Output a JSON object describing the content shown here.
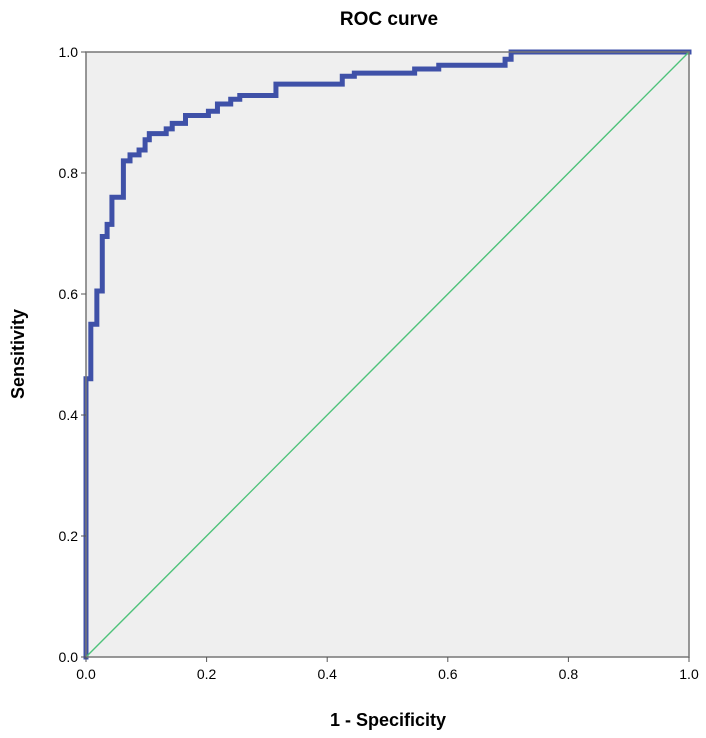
{
  "chart_data": {
    "type": "line",
    "title": "ROC curve",
    "xlabel": "1 - Specificity",
    "ylabel": "Sensitivity",
    "xlim": [
      0,
      1
    ],
    "ylim": [
      0,
      1
    ],
    "x_ticks": [
      "0.0",
      "0.2",
      "0.4",
      "0.6",
      "0.8",
      "1.0"
    ],
    "y_ticks": [
      "0.0",
      "0.2",
      "0.4",
      "0.6",
      "0.8",
      "1.0"
    ],
    "grid": false,
    "legend": "none",
    "plot_background": "#efefef",
    "series": [
      {
        "role": "roc",
        "color": "#3f51a8",
        "points": [
          [
            0.0,
            0.0
          ],
          [
            0.0,
            0.46
          ],
          [
            0.008,
            0.46
          ],
          [
            0.008,
            0.55
          ],
          [
            0.018,
            0.55
          ],
          [
            0.018,
            0.605
          ],
          [
            0.027,
            0.605
          ],
          [
            0.027,
            0.695
          ],
          [
            0.035,
            0.695
          ],
          [
            0.035,
            0.715
          ],
          [
            0.043,
            0.715
          ],
          [
            0.043,
            0.76
          ],
          [
            0.062,
            0.76
          ],
          [
            0.062,
            0.82
          ],
          [
            0.073,
            0.82
          ],
          [
            0.073,
            0.83
          ],
          [
            0.088,
            0.83
          ],
          [
            0.088,
            0.838
          ],
          [
            0.098,
            0.838
          ],
          [
            0.098,
            0.855
          ],
          [
            0.105,
            0.855
          ],
          [
            0.105,
            0.865
          ],
          [
            0.133,
            0.865
          ],
          [
            0.133,
            0.873
          ],
          [
            0.143,
            0.873
          ],
          [
            0.143,
            0.882
          ],
          [
            0.165,
            0.882
          ],
          [
            0.165,
            0.895
          ],
          [
            0.203,
            0.895
          ],
          [
            0.203,
            0.902
          ],
          [
            0.218,
            0.902
          ],
          [
            0.218,
            0.914
          ],
          [
            0.24,
            0.914
          ],
          [
            0.24,
            0.922
          ],
          [
            0.255,
            0.922
          ],
          [
            0.255,
            0.928
          ],
          [
            0.315,
            0.928
          ],
          [
            0.315,
            0.947
          ],
          [
            0.425,
            0.947
          ],
          [
            0.425,
            0.96
          ],
          [
            0.445,
            0.96
          ],
          [
            0.445,
            0.965
          ],
          [
            0.545,
            0.965
          ],
          [
            0.545,
            0.972
          ],
          [
            0.585,
            0.972
          ],
          [
            0.585,
            0.978
          ],
          [
            0.695,
            0.978
          ],
          [
            0.695,
            0.988
          ],
          [
            0.705,
            0.988
          ],
          [
            0.705,
            1.0
          ],
          [
            1.0,
            1.0
          ]
        ]
      },
      {
        "role": "reference",
        "color": "#4ec27a",
        "points": [
          [
            0,
            0
          ],
          [
            1,
            1
          ]
        ]
      }
    ]
  }
}
